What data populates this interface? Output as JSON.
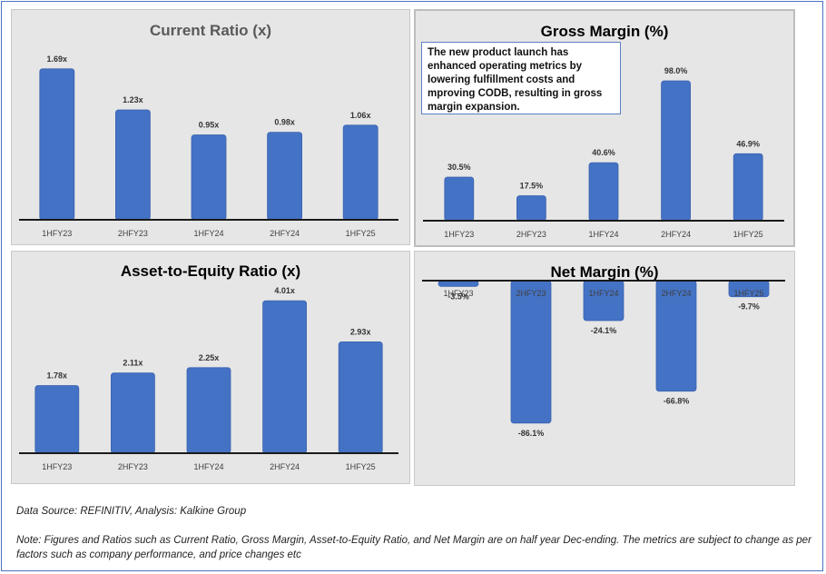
{
  "chart_data": [
    {
      "type": "bar",
      "title": "Current Ratio (x)",
      "categories": [
        "1HFY23",
        "2HFY23",
        "1HFY24",
        "2HFY24",
        "1HFY25"
      ],
      "values": [
        1.69,
        1.23,
        0.95,
        0.98,
        1.06
      ],
      "data_labels": [
        "1.69x",
        "1.23x",
        "0.95x",
        "0.98x",
        "1.06x"
      ],
      "ylim": [
        0,
        1.8
      ],
      "color": "#4472c4",
      "grid": false
    },
    {
      "type": "bar",
      "title": "Gross Margin (%)",
      "categories": [
        "1HFY23",
        "2HFY23",
        "1HFY24",
        "2HFY24",
        "1HFY25"
      ],
      "values": [
        30.5,
        17.5,
        40.6,
        98.0,
        46.9
      ],
      "data_labels": [
        "30.5%",
        "17.5%",
        "40.6%",
        "98.0%",
        "46.9%"
      ],
      "ylim": [
        0,
        105
      ],
      "color": "#4472c4",
      "grid": false,
      "annotation": "The new product launch has enhanced operating metrics by lowering fulfillment costs and mproving CODB, resulting in gross margin expansion."
    },
    {
      "type": "bar",
      "title": "Asset-to-Equity Ratio (x)",
      "categories": [
        "1HFY23",
        "2HFY23",
        "1HFY24",
        "2HFY24",
        "1HFY25"
      ],
      "values": [
        1.78,
        2.11,
        2.25,
        4.01,
        2.93
      ],
      "data_labels": [
        "1.78x",
        "2.11x",
        "2.25x",
        "4.01x",
        "2.93x"
      ],
      "ylim": [
        0,
        4.3
      ],
      "color": "#4472c4",
      "grid": false
    },
    {
      "type": "bar",
      "title": "Net Margin (%)",
      "categories": [
        "1HFY23",
        "2HFY23",
        "1HFY24",
        "2HFY24",
        "1HFY25"
      ],
      "values": [
        -3.5,
        -86.1,
        -24.1,
        -66.8,
        -9.7
      ],
      "data_labels": [
        "-3.5%",
        "-86.1%",
        "-24.1%",
        "-66.8%",
        "-9.7%"
      ],
      "ylim": [
        -90,
        0
      ],
      "color": "#4472c4",
      "grid": false
    }
  ],
  "footer": {
    "source": "Data Source: REFINITIV, Analysis: Kalkine Group",
    "note": "Note: Figures and Ratios such as Current Ratio, Gross Margin, Asset-to-Equity Ratio, and Net Margin are on half year Dec-ending. The metrics are subject to change as per factors such as company performance, and price changes etc"
  }
}
